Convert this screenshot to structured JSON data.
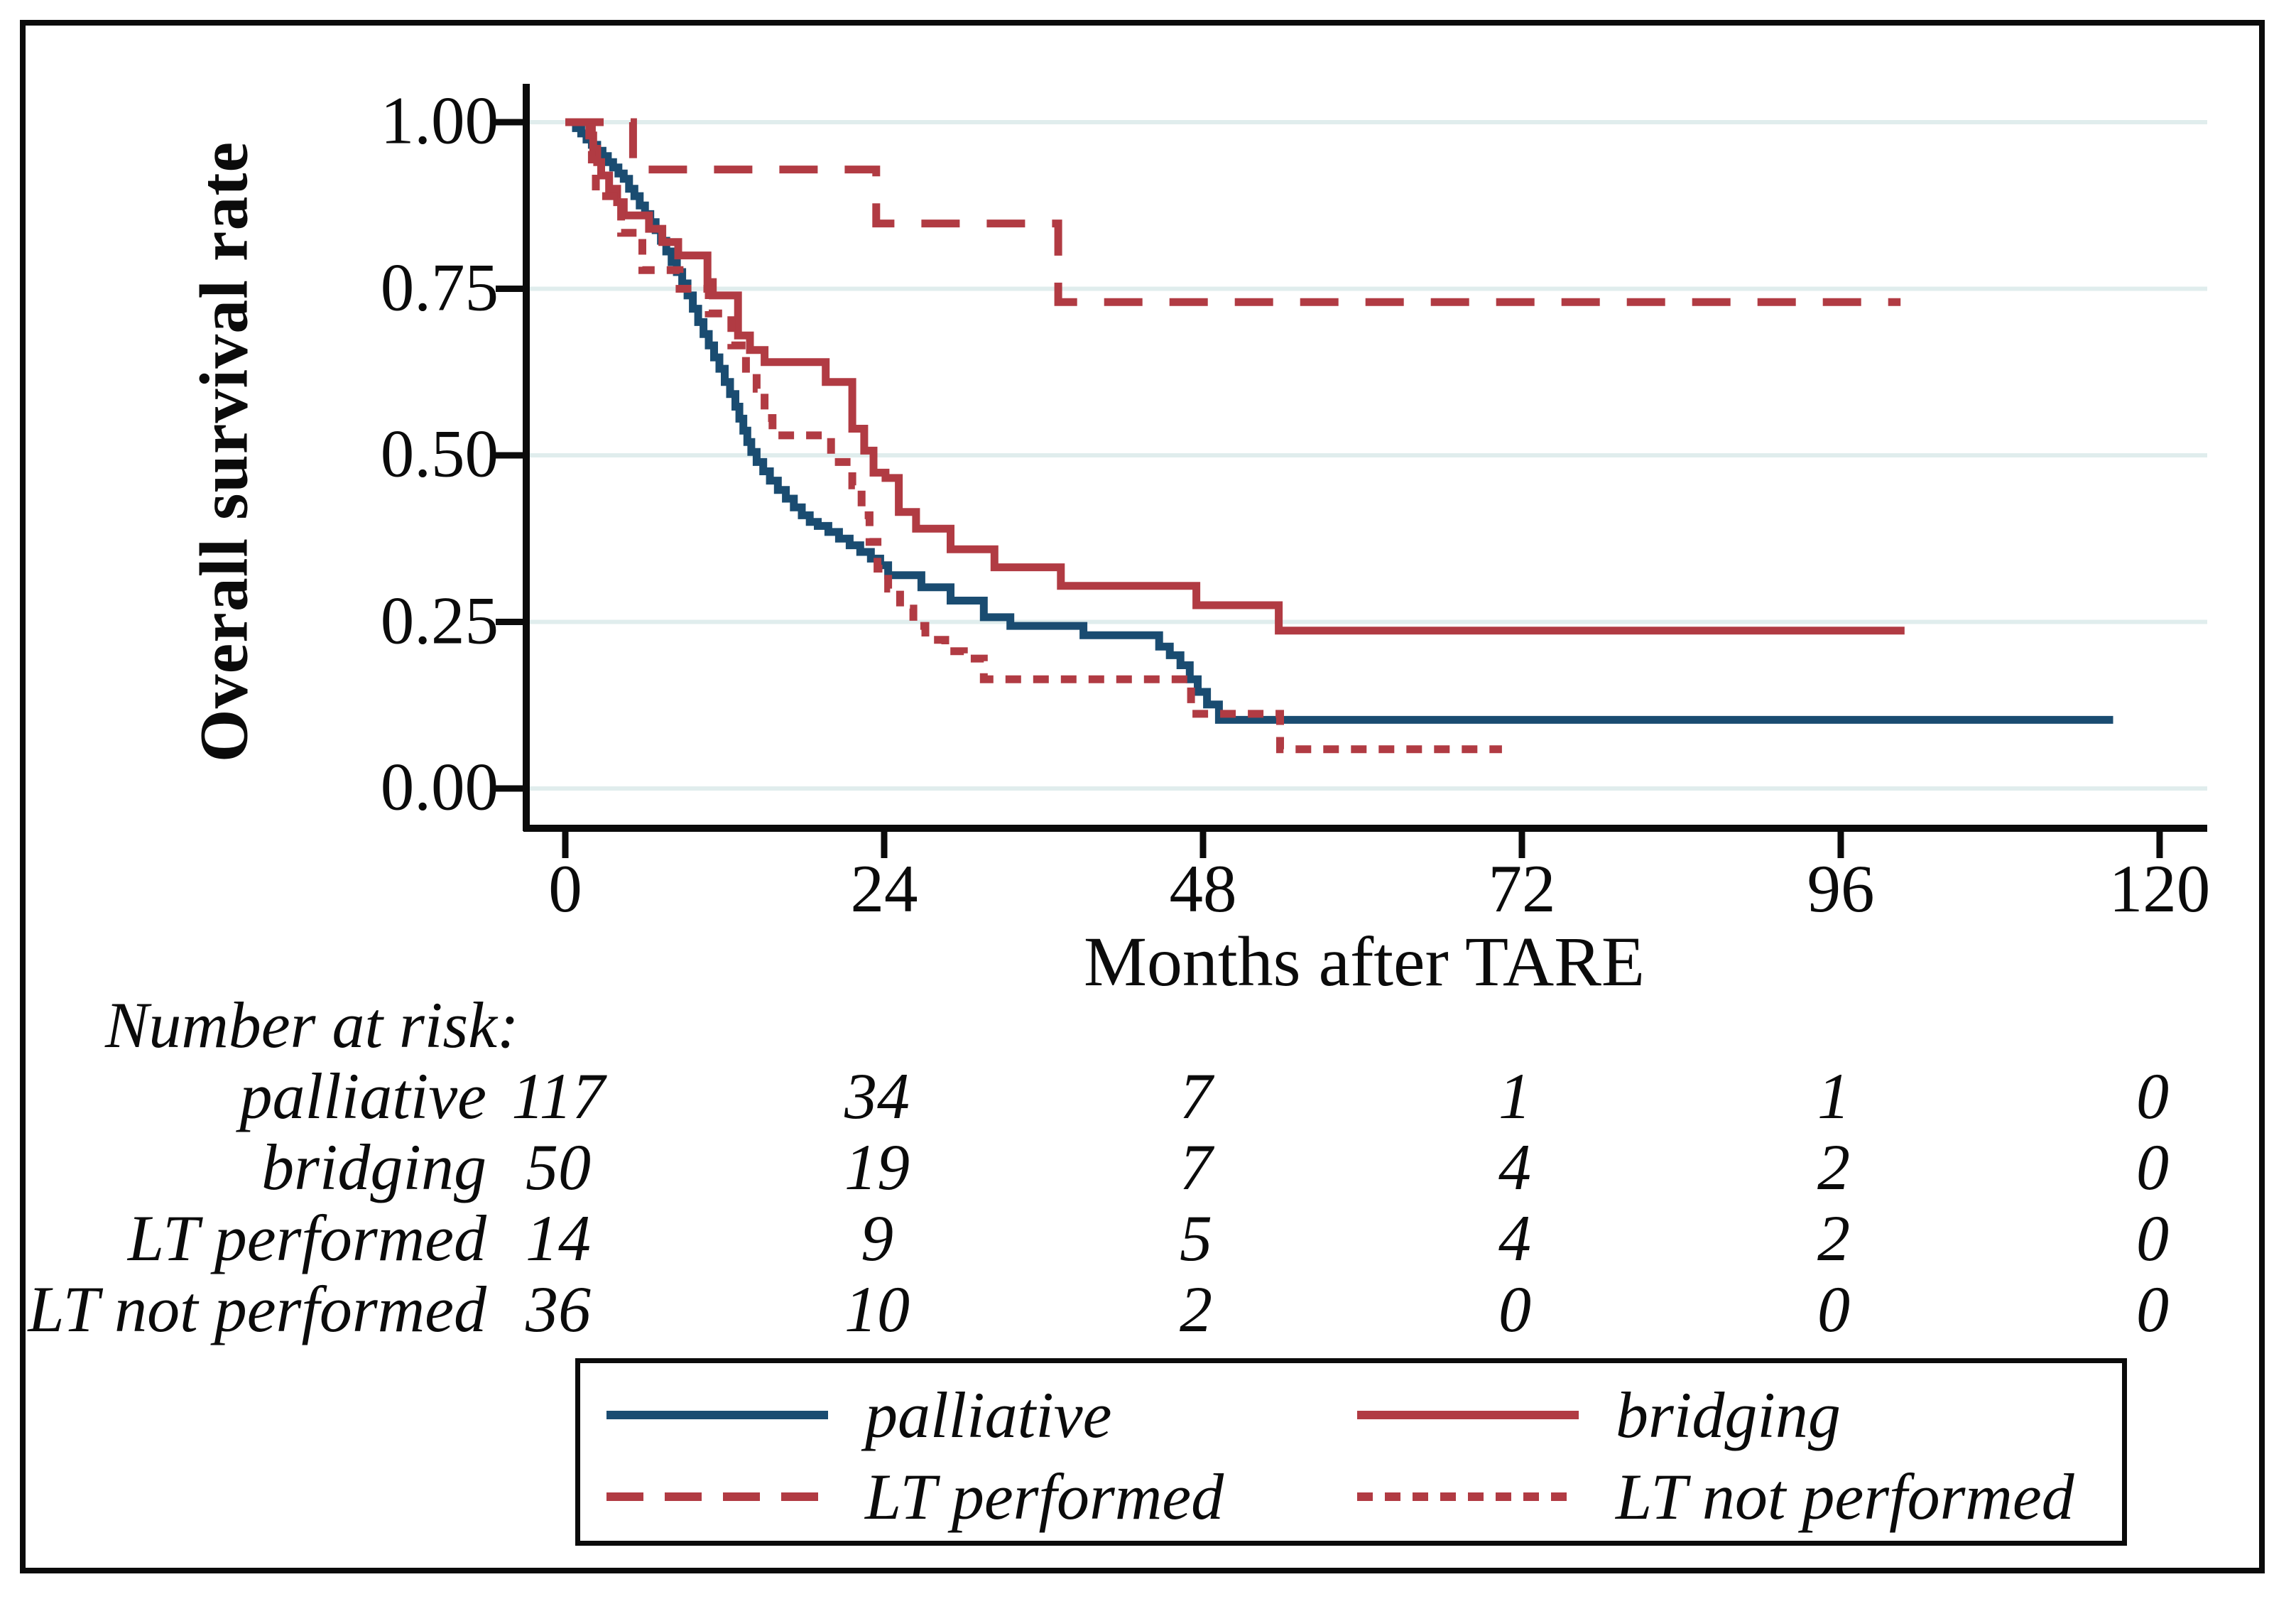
{
  "figure": {
    "background": "#ffffff",
    "border_color": "#0b0b0b"
  },
  "colors": {
    "navy": "#1A4C71",
    "red": "#B13B43",
    "gridline": "#E0EDED",
    "axis": "#0b0b0b",
    "text": "#0b0b0b"
  },
  "chart_data": {
    "type": "line",
    "subtype": "kaplan-meier-step",
    "title": "",
    "xlabel": "Months after TARE",
    "ylabel": "Overall survival rate",
    "xlim": [
      0,
      120
    ],
    "ylim": [
      0.0,
      1.0
    ],
    "grid": "horizontal",
    "legend_position": "bottom",
    "xticks": [
      {
        "value": 0,
        "label": "0"
      },
      {
        "value": 24,
        "label": "24"
      },
      {
        "value": 48,
        "label": "48"
      },
      {
        "value": 72,
        "label": "72"
      },
      {
        "value": 96,
        "label": "96"
      },
      {
        "value": 120,
        "label": "120"
      }
    ],
    "yticks": [
      {
        "value": 1.0,
        "label": "1.00"
      },
      {
        "value": 0.75,
        "label": "0.75"
      },
      {
        "value": 0.5,
        "label": "0.50"
      },
      {
        "value": 0.25,
        "label": "0.25"
      },
      {
        "value": 0.0,
        "label": "0.00"
      }
    ],
    "series": [
      {
        "name": "palliative",
        "color": "#1A4C71",
        "style": "solid",
        "points": [
          [
            0,
            1
          ],
          [
            0.8,
            0.991
          ],
          [
            1.2,
            0.983
          ],
          [
            1.6,
            0.974
          ],
          [
            2,
            0.966
          ],
          [
            2.4,
            0.957
          ],
          [
            2.8,
            0.949
          ],
          [
            3.2,
            0.94
          ],
          [
            3.6,
            0.932
          ],
          [
            4,
            0.923
          ],
          [
            4.4,
            0.915
          ],
          [
            4.8,
            0.9
          ],
          [
            5.2,
            0.889
          ],
          [
            5.6,
            0.875
          ],
          [
            6,
            0.862
          ],
          [
            6.4,
            0.85
          ],
          [
            6.8,
            0.838
          ],
          [
            7.2,
            0.822
          ],
          [
            7.6,
            0.806
          ],
          [
            8,
            0.79
          ],
          [
            8.4,
            0.775
          ],
          [
            8.8,
            0.758
          ],
          [
            9.2,
            0.74
          ],
          [
            9.6,
            0.72
          ],
          [
            10,
            0.7
          ],
          [
            10.4,
            0.682
          ],
          [
            10.8,
            0.665
          ],
          [
            11.2,
            0.647
          ],
          [
            11.6,
            0.63
          ],
          [
            12,
            0.61
          ],
          [
            12.4,
            0.592
          ],
          [
            12.8,
            0.573
          ],
          [
            13.1,
            0.555
          ],
          [
            13.4,
            0.537
          ],
          [
            13.7,
            0.52
          ],
          [
            14,
            0.505
          ],
          [
            14.4,
            0.49
          ],
          [
            14.9,
            0.476
          ],
          [
            15.4,
            0.462
          ],
          [
            16,
            0.448
          ],
          [
            16.6,
            0.435
          ],
          [
            17.2,
            0.422
          ],
          [
            17.8,
            0.41
          ],
          [
            18.4,
            0.4
          ],
          [
            19,
            0.394
          ],
          [
            19.8,
            0.385
          ],
          [
            20.6,
            0.375
          ],
          [
            21.4,
            0.365
          ],
          [
            22.2,
            0.355
          ],
          [
            23,
            0.345
          ],
          [
            23.7,
            0.335
          ],
          [
            24.3,
            0.32
          ],
          [
            26.8,
            0.302
          ],
          [
            29,
            0.282
          ],
          [
            31.5,
            0.257
          ],
          [
            33.5,
            0.244
          ],
          [
            39,
            0.23
          ],
          [
            44.7,
            0.213
          ],
          [
            45.5,
            0.2
          ],
          [
            46.3,
            0.185
          ],
          [
            47,
            0.164
          ],
          [
            47.6,
            0.145
          ],
          [
            48.3,
            0.126
          ],
          [
            49.2,
            0.103
          ],
          [
            116.5,
            0.103
          ]
        ]
      },
      {
        "name": "bridging",
        "color": "#B13B43",
        "style": "solid",
        "points": [
          [
            0,
            1
          ],
          [
            1.8,
            0.98
          ],
          [
            2.1,
            0.96
          ],
          [
            2.4,
            0.94
          ],
          [
            2.7,
            0.92
          ],
          [
            3.3,
            0.9
          ],
          [
            3.9,
            0.88
          ],
          [
            4.4,
            0.86
          ],
          [
            6.3,
            0.84
          ],
          [
            7.3,
            0.82
          ],
          [
            8.5,
            0.8
          ],
          [
            10.7,
            0.76
          ],
          [
            11.1,
            0.74
          ],
          [
            13,
            0.68
          ],
          [
            13.9,
            0.658
          ],
          [
            15,
            0.64
          ],
          [
            19.6,
            0.61
          ],
          [
            21.6,
            0.54
          ],
          [
            22.5,
            0.507
          ],
          [
            23.2,
            0.474
          ],
          [
            24.1,
            0.466
          ],
          [
            25.1,
            0.415
          ],
          [
            26.4,
            0.39
          ],
          [
            29,
            0.359
          ],
          [
            32.3,
            0.332
          ],
          [
            37.3,
            0.304
          ],
          [
            47.5,
            0.275
          ],
          [
            53.7,
            0.237
          ],
          [
            100.8,
            0.237
          ]
        ]
      },
      {
        "name": "LT performed",
        "color": "#B13B43",
        "style": "dash",
        "points": [
          [
            0,
            1
          ],
          [
            5.1,
            0.929
          ],
          [
            23.4,
            0.848
          ],
          [
            37.1,
            0.73
          ],
          [
            100.5,
            0.73
          ]
        ]
      },
      {
        "name": "LT not performed",
        "color": "#B13B43",
        "style": "dot",
        "points": [
          [
            0,
            1
          ],
          [
            2,
            0.944
          ],
          [
            2.3,
            0.889
          ],
          [
            4.2,
            0.834
          ],
          [
            5.8,
            0.778
          ],
          [
            8.6,
            0.75
          ],
          [
            10.8,
            0.713
          ],
          [
            12.5,
            0.665
          ],
          [
            13.6,
            0.63
          ],
          [
            14.4,
            0.6
          ],
          [
            15,
            0.556
          ],
          [
            15.6,
            0.53
          ],
          [
            20,
            0.49
          ],
          [
            21.6,
            0.455
          ],
          [
            22.3,
            0.41
          ],
          [
            22.9,
            0.37
          ],
          [
            23.5,
            0.33
          ],
          [
            24.3,
            0.3
          ],
          [
            25.2,
            0.27
          ],
          [
            26.2,
            0.244
          ],
          [
            27.1,
            0.223
          ],
          [
            28.6,
            0.206
          ],
          [
            30,
            0.195
          ],
          [
            31.5,
            0.164
          ],
          [
            47.1,
            0.112
          ],
          [
            53.8,
            0.059
          ],
          [
            70.5,
            0.059
          ]
        ]
      }
    ]
  },
  "risk_table": {
    "title": "Number at risk:",
    "columns": [
      0,
      24,
      48,
      72,
      96,
      120
    ],
    "rows": [
      {
        "label": "palliative",
        "counts": [
          "117",
          "34",
          "7",
          "1",
          "1",
          "0"
        ]
      },
      {
        "label": "bridging",
        "counts": [
          "50",
          "19",
          "7",
          "4",
          "2",
          "0"
        ]
      },
      {
        "label": "LT performed",
        "counts": [
          "14",
          "9",
          "5",
          "4",
          "2",
          "0"
        ]
      },
      {
        "label": "LT not performed",
        "counts": [
          "36",
          "10",
          "2",
          "0",
          "0",
          "0"
        ]
      }
    ]
  },
  "legend": {
    "items": [
      {
        "label": "palliative",
        "style": "solid",
        "color": "#1A4C71"
      },
      {
        "label": "bridging",
        "style": "solid",
        "color": "#B13B43"
      },
      {
        "label": "LT performed",
        "style": "dash",
        "color": "#B13B43"
      },
      {
        "label": "LT not performed",
        "style": "dot",
        "color": "#B13B43"
      }
    ]
  }
}
